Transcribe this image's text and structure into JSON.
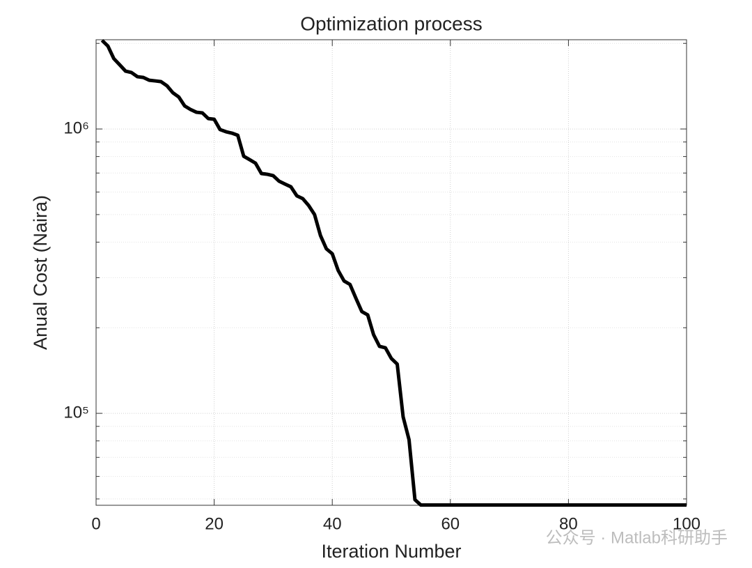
{
  "chart_data": {
    "type": "line",
    "title": "Optimization process",
    "xlabel": "Iteration Number",
    "ylabel": "Anual Cost (Naira)",
    "watermark": "公众号 · Matlab科研助手",
    "yscale": "log",
    "grid": true,
    "color": "#000000",
    "xlim": [
      0,
      100
    ],
    "xticks": [
      0,
      20,
      40,
      60,
      80,
      100
    ],
    "ylim": [
      47500,
      2060000
    ],
    "yticks": [
      {
        "value": 100000,
        "label": "10⁵"
      },
      {
        "value": 1000000,
        "label": "10⁶"
      }
    ],
    "yminorticks": [
      50000,
      60000,
      70000,
      80000,
      90000,
      200000,
      300000,
      400000,
      500000,
      600000,
      700000,
      800000,
      900000,
      2000000
    ],
    "x": [
      1,
      2,
      3,
      4,
      5,
      6,
      7,
      8,
      9,
      10,
      11,
      12,
      13,
      14,
      15,
      16,
      17,
      18,
      19,
      20,
      21,
      22,
      23,
      24,
      25,
      26,
      27,
      28,
      29,
      30,
      31,
      32,
      33,
      34,
      35,
      36,
      37,
      38,
      39,
      40,
      41,
      42,
      43,
      44,
      45,
      46,
      47,
      48,
      49,
      50,
      51,
      52,
      53,
      54,
      55,
      56,
      57,
      58,
      59,
      60,
      61,
      62,
      63,
      64,
      65,
      66,
      67,
      68,
      69,
      70,
      71,
      72,
      73,
      74,
      75,
      76,
      77,
      78,
      79,
      80,
      81,
      82,
      83,
      84,
      85,
      86,
      87,
      88,
      89,
      90,
      91,
      92,
      93,
      94,
      95,
      96,
      97,
      98,
      99,
      100
    ],
    "values": [
      2050000,
      1957000,
      1768000,
      1681000,
      1597000,
      1579000,
      1527000,
      1518000,
      1484000,
      1476000,
      1467000,
      1419000,
      1341000,
      1296000,
      1205000,
      1171000,
      1145000,
      1139000,
      1088000,
      1082000,
      995000,
      978000,
      967000,
      950000,
      802000,
      780000,
      758000,
      697000,
      693000,
      685000,
      655000,
      640000,
      626000,
      582000,
      569000,
      538000,
      500000,
      422000,
      379000,
      364000,
      318000,
      292000,
      284000,
      254000,
      228000,
      222000,
      189000,
      172000,
      170000,
      156000,
      149000,
      97200,
      80800,
      49700,
      47600,
      47600,
      47600,
      47600,
      47600,
      47600,
      47600,
      47600,
      47600,
      47600,
      47600,
      47600,
      47600,
      47600,
      47600,
      47600,
      47600,
      47600,
      47600,
      47600,
      47600,
      47600,
      47600,
      47600,
      47600,
      47600,
      47600,
      47600,
      47600,
      47600,
      47600,
      47600,
      47600,
      47600,
      47600,
      47600,
      47600,
      47600,
      47600,
      47600,
      47600,
      47600,
      47600,
      47600,
      47600,
      47600
    ]
  }
}
